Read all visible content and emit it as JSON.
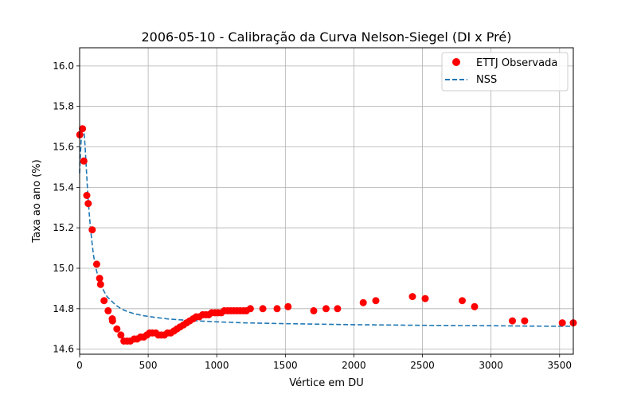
{
  "chart_data": {
    "type": "scatter",
    "title": "2006-05-10 - Calibração da Curva Nelson-Siegel (DI x Pré)",
    "xlabel": "Vértice em DU",
    "ylabel": "Taxa ao ano (%)",
    "xlim": [
      0,
      3600
    ],
    "ylim": [
      14.575,
      16.09
    ],
    "xticks": [
      0,
      500,
      1000,
      1500,
      2000,
      2500,
      3000,
      3500
    ],
    "yticks": [
      14.6,
      14.8,
      15.0,
      15.2,
      15.4,
      15.6,
      15.8,
      16.0
    ],
    "xtick_labels": [
      "0",
      "500",
      "1000",
      "1500",
      "2000",
      "2500",
      "3000",
      "3500"
    ],
    "ytick_labels": [
      "14.6",
      "14.8",
      "15.0",
      "15.2",
      "15.4",
      "15.6",
      "15.8",
      "16.0"
    ],
    "grid": true,
    "legend_position": "top-right",
    "legend": [
      "ETTJ Observada",
      "NSS"
    ],
    "colors": {
      "observed": "#ff0000",
      "model": "#1f77b4"
    },
    "series": [
      {
        "name": "ETTJ Observada",
        "kind": "scatter",
        "x": [
          1,
          21,
          31,
          52,
          63,
          92,
          124,
          146,
          153,
          178,
          208,
          238,
          240,
          272,
          301,
          323,
          347,
          370,
          398,
          419,
          444,
          468,
          490,
          510,
          530,
          555,
          574,
          596,
          618,
          641,
          665,
          688,
          710,
          733,
          757,
          780,
          803,
          828,
          850,
          873,
          897,
          920,
          941,
          963,
          987,
          1010,
          1033,
          1055,
          1080,
          1102,
          1125,
          1148,
          1171,
          1195,
          1216,
          1245,
          1336,
          1440,
          1520,
          1707,
          1797,
          1881,
          2068,
          2160,
          2427,
          2520,
          2790,
          2880,
          3156,
          3245,
          3520,
          3600
        ],
        "y": [
          15.66,
          15.69,
          15.53,
          15.36,
          15.32,
          15.19,
          15.02,
          14.95,
          14.92,
          14.84,
          14.79,
          14.75,
          14.74,
          14.7,
          14.67,
          14.64,
          14.64,
          14.64,
          14.65,
          14.65,
          14.66,
          14.66,
          14.67,
          14.68,
          14.68,
          14.68,
          14.67,
          14.67,
          14.67,
          14.68,
          14.68,
          14.69,
          14.7,
          14.71,
          14.72,
          14.73,
          14.74,
          14.75,
          14.76,
          14.76,
          14.77,
          14.77,
          14.77,
          14.78,
          14.78,
          14.78,
          14.78,
          14.79,
          14.79,
          14.79,
          14.79,
          14.79,
          14.79,
          14.79,
          14.79,
          14.8,
          14.8,
          14.8,
          14.81,
          14.79,
          14.8,
          14.8,
          14.83,
          14.84,
          14.86,
          14.85,
          14.84,
          14.81,
          14.74,
          14.74,
          14.73,
          14.73
        ]
      },
      {
        "name": "NSS",
        "kind": "dashed-line",
        "x": [
          0,
          5,
          10,
          15,
          20,
          25,
          30,
          35,
          40,
          50,
          60,
          70,
          80,
          90,
          100,
          115,
          130,
          150,
          175,
          200,
          230,
          260,
          300,
          350,
          400,
          470,
          550,
          650,
          800,
          1000,
          1200,
          1500,
          2000,
          2500,
          3000,
          3300,
          3600
        ],
        "y": [
          15.47,
          15.55,
          15.62,
          15.67,
          15.69,
          15.69,
          15.68,
          15.65,
          15.6,
          15.48,
          15.36,
          15.27,
          15.19,
          15.13,
          15.07,
          15.01,
          14.97,
          14.93,
          14.89,
          14.86,
          14.84,
          14.82,
          14.8,
          14.785,
          14.775,
          14.765,
          14.757,
          14.749,
          14.742,
          14.735,
          14.73,
          14.726,
          14.721,
          14.718,
          14.716,
          14.714,
          14.713
        ]
      }
    ]
  }
}
